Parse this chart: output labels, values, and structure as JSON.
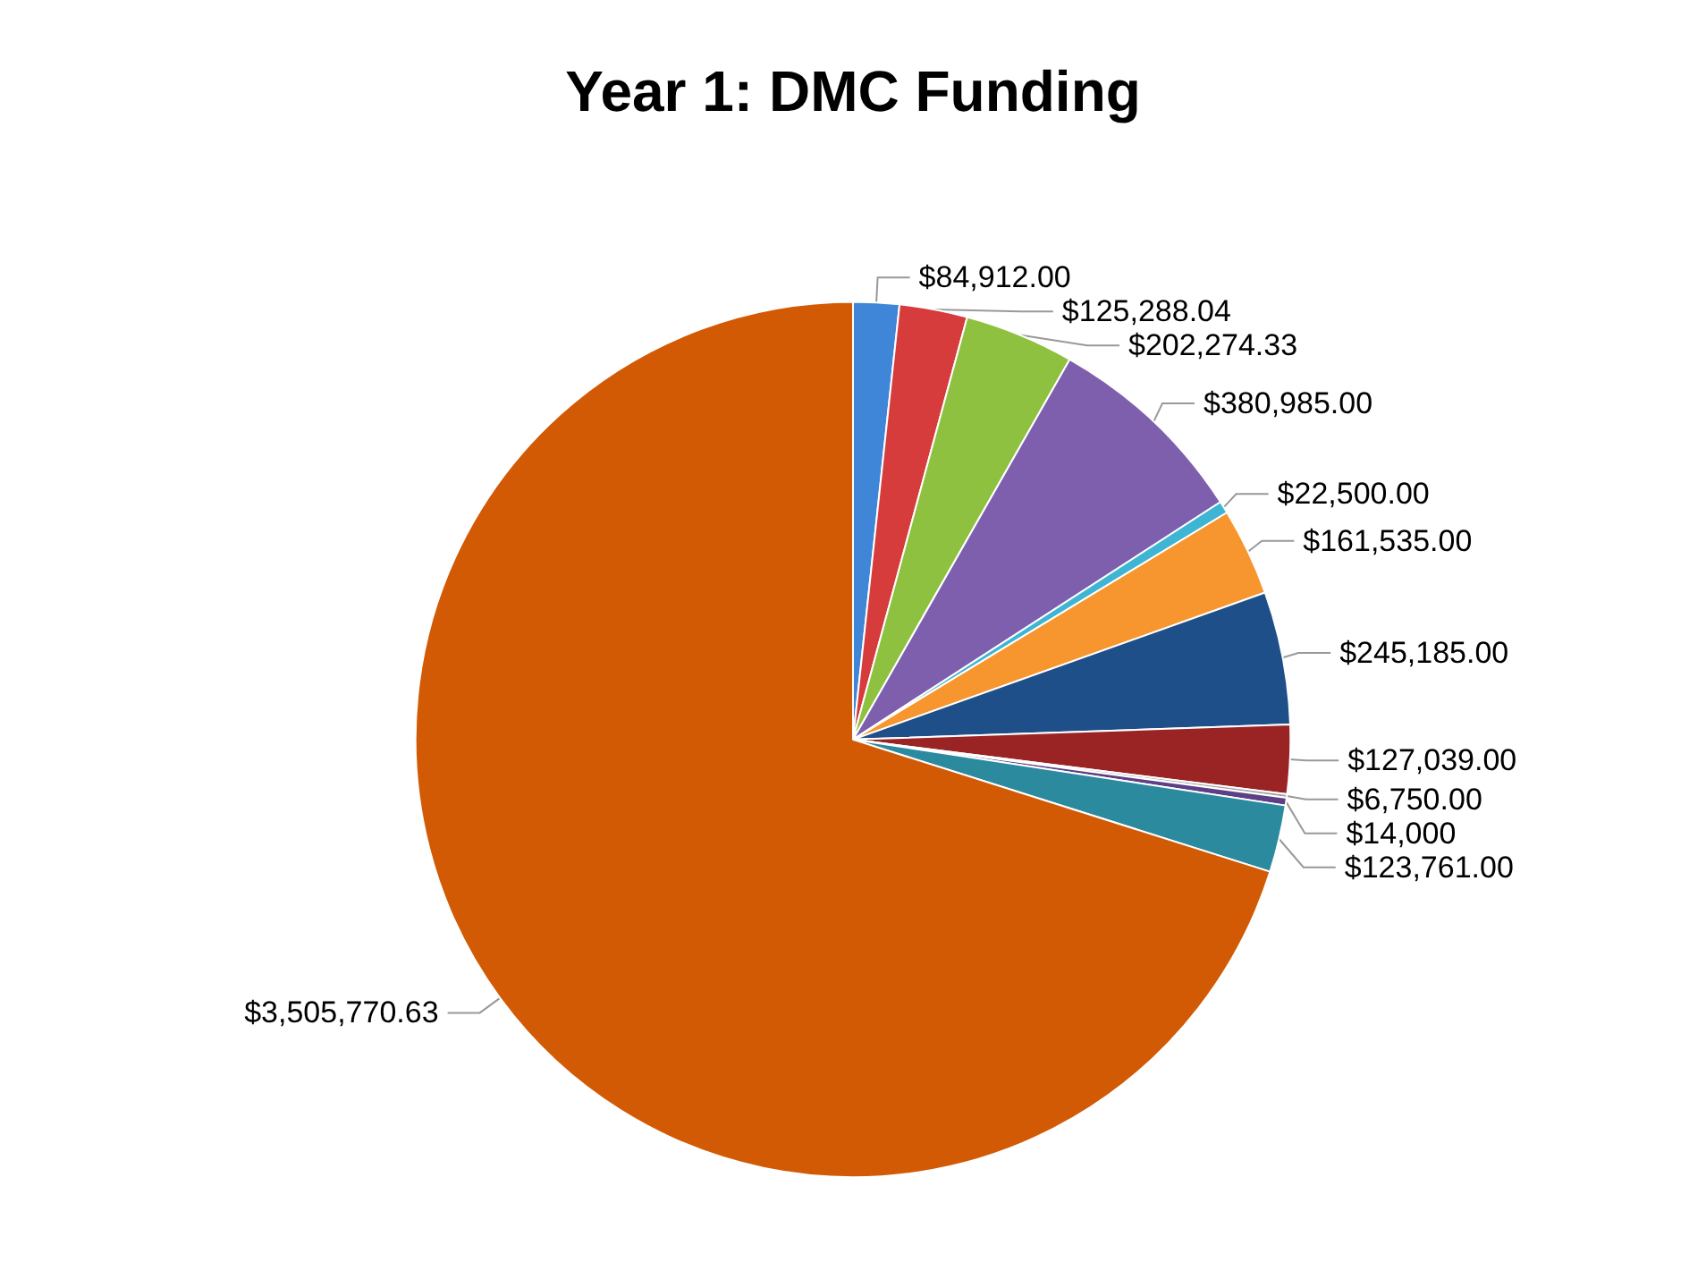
{
  "chart_data": {
    "type": "pie",
    "title": "Year 1: DMC Funding",
    "categories": [
      null,
      null,
      null,
      null,
      null,
      null,
      null,
      null,
      null,
      null,
      null,
      null
    ],
    "values": [
      84912.0,
      125288.04,
      202274.33,
      380985.0,
      22500.0,
      161535.0,
      245185.0,
      127039.0,
      6750.0,
      14000,
      123761.0,
      3505770.63
    ],
    "value_labels": [
      "$84,912.00",
      "$125,288.04",
      "$202,274.33",
      "$380,985.00",
      "$22,500.00",
      "$161,535.00",
      "$245,185.00",
      "$127,039.00",
      "$6,750.00",
      "$14,000",
      "$123,761.00",
      "$3,505,770.63"
    ],
    "colors": [
      "#3f86d8",
      "#d63c3c",
      "#8dc13f",
      "#7e5fae",
      "#3fb5d4",
      "#f7962e",
      "#1f4f88",
      "#9a2424",
      "#a0a0a0",
      "#5d3f86",
      "#2b8a9e",
      "#d35a05"
    ]
  }
}
